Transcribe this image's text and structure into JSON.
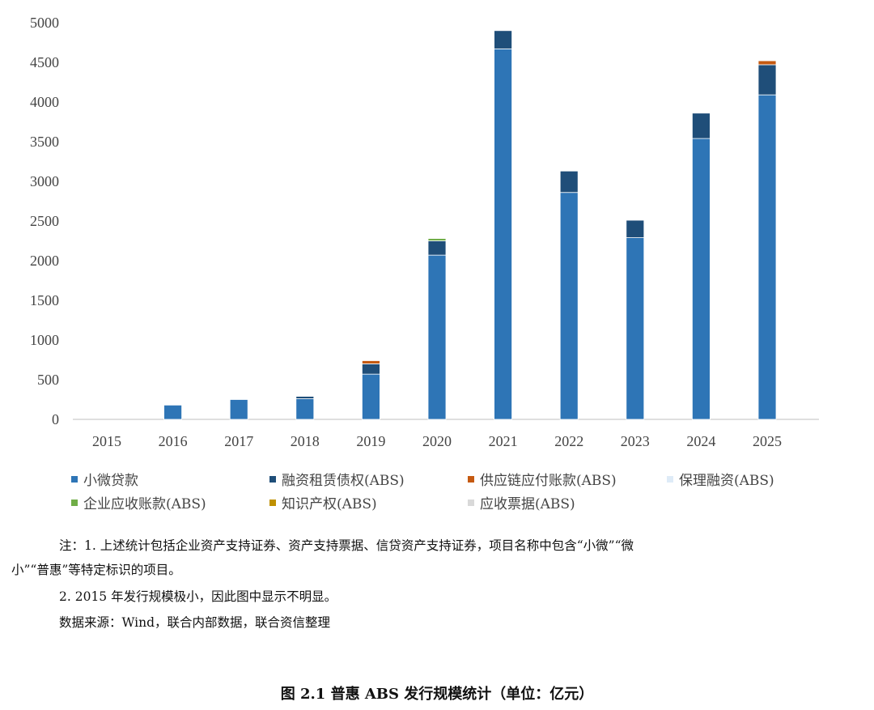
{
  "chart_data": {
    "type": "bar",
    "stacked": true,
    "categories": [
      "2015",
      "2016",
      "2017",
      "2018",
      "2019",
      "2020",
      "2021",
      "2022",
      "2023",
      "2024",
      "2025"
    ],
    "ylim": [
      0,
      5000
    ],
    "yticks": [
      0,
      500,
      1000,
      1500,
      2000,
      2500,
      3000,
      3500,
      4000,
      4500,
      5000
    ],
    "grid": false,
    "legend_position": "bottom",
    "series": [
      {
        "name": "小微贷款",
        "color": "#2E75B6",
        "values": [
          0,
          180,
          250,
          260,
          570,
          2070,
          4670,
          2860,
          2290,
          3540,
          4090
        ]
      },
      {
        "name": "融资租赁债权(ABS)",
        "color": "#1F4E79",
        "values": [
          0,
          0,
          0,
          30,
          130,
          180,
          230,
          270,
          220,
          320,
          380
        ]
      },
      {
        "name": "供应链应付账款(ABS)",
        "color": "#C55A11",
        "values": [
          0,
          0,
          0,
          0,
          40,
          0,
          0,
          0,
          0,
          0,
          50
        ]
      },
      {
        "name": "保理融资(ABS)",
        "color": "#DEEBF7",
        "values": [
          0,
          0,
          0,
          0,
          0,
          0,
          0,
          0,
          0,
          0,
          0
        ]
      },
      {
        "name": "企业应收账款(ABS)",
        "color": "#70AD47",
        "values": [
          0,
          0,
          0,
          0,
          0,
          30,
          0,
          0,
          0,
          0,
          0
        ]
      },
      {
        "name": "知识产权(ABS)",
        "color": "#BF9000",
        "values": [
          0,
          0,
          0,
          0,
          0,
          0,
          0,
          0,
          0,
          0,
          0
        ]
      },
      {
        "name": "应收票据(ABS)",
        "color": "#D9D9D9",
        "values": [
          0,
          0,
          0,
          0,
          0,
          0,
          0,
          0,
          0,
          0,
          0
        ]
      }
    ]
  },
  "notes": {
    "line1": "注：1. 上述统计包括企业资产支持证券、资产支持票据、信贷资产支持证券，项目名称中包含“小微”“微",
    "line2": "小”“普惠”等特定标识的项目。",
    "line3": "2. 2015 年发行规模极小，因此图中显示不明显。",
    "source": "数据来源：Wind，联合内部数据，联合资信整理"
  },
  "caption": "图 2.1    普惠 ABS 发行规模统计（单位：亿元）"
}
